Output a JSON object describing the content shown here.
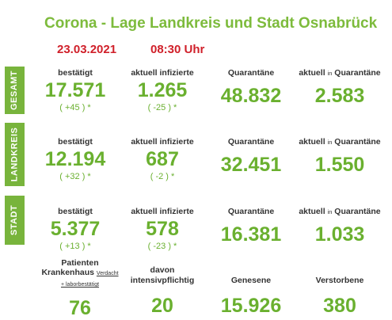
{
  "header": {
    "title": "Corona - Lage Landkreis und Stadt Osnabrück",
    "date": "23.03.2021",
    "time": "08:30 Uhr"
  },
  "sections": [
    {
      "label": "GESAMT",
      "bestaetigt_label": "bestätigt",
      "bestaetigt": "17.571",
      "bestaetigt_delta": "( +45 ) *",
      "infizierte_label": "aktuell infizierte",
      "infizierte": "1.265",
      "infizierte_delta": "( -25 ) *",
      "quarantaene_label": "Quarantäne",
      "quarantaene": "48.832",
      "aktuell_quar_label_a": "aktuell",
      "aktuell_quar_label_b": "in",
      "aktuell_quar_label_c": "Quarantäne",
      "aktuell_quar": "2.583"
    },
    {
      "label": "LANDKREIS",
      "bestaetigt_label": "bestätigt",
      "bestaetigt": "12.194",
      "bestaetigt_delta": "( +32 ) *",
      "infizierte_label": "aktuell infizierte",
      "infizierte": "687",
      "infizierte_delta": "( -2 ) *",
      "quarantaene_label": "Quarantäne",
      "quarantaene": "32.451",
      "aktuell_quar_label_a": "aktuell",
      "aktuell_quar_label_b": "in",
      "aktuell_quar_label_c": "Quarantäne",
      "aktuell_quar": "1.550"
    },
    {
      "label": "STADT",
      "bestaetigt_label": "bestätigt",
      "bestaetigt": "5.377",
      "bestaetigt_delta": "( +13 ) *",
      "infizierte_label": "aktuell infizierte",
      "infizierte": "578",
      "infizierte_delta": "( -23 ) *",
      "quarantaene_label": "Quarantäne",
      "quarantaene": "16.381",
      "aktuell_quar_label_a": "aktuell",
      "aktuell_quar_label_b": "in",
      "aktuell_quar_label_c": "Quarantäne",
      "aktuell_quar": "1.033"
    }
  ],
  "bottom": {
    "patienten_label": "Patienten",
    "krankenhaus_label": "Krankenhaus",
    "verdacht_label": "Verdacht",
    "laborbestaetigt_label": "+ laborbestätigt",
    "krankenhaus": "76",
    "davon_label": "davon",
    "intensiv_label": "intensivpflichtig",
    "intensiv": "20",
    "genesene_label": "Genesene",
    "genesene": "15.926",
    "verstorbene_label": "Verstorbene",
    "verstorbene": "380"
  },
  "colors": {
    "green": "#6ab02f",
    "label_bg": "#78b43c",
    "red": "#d0202a"
  }
}
